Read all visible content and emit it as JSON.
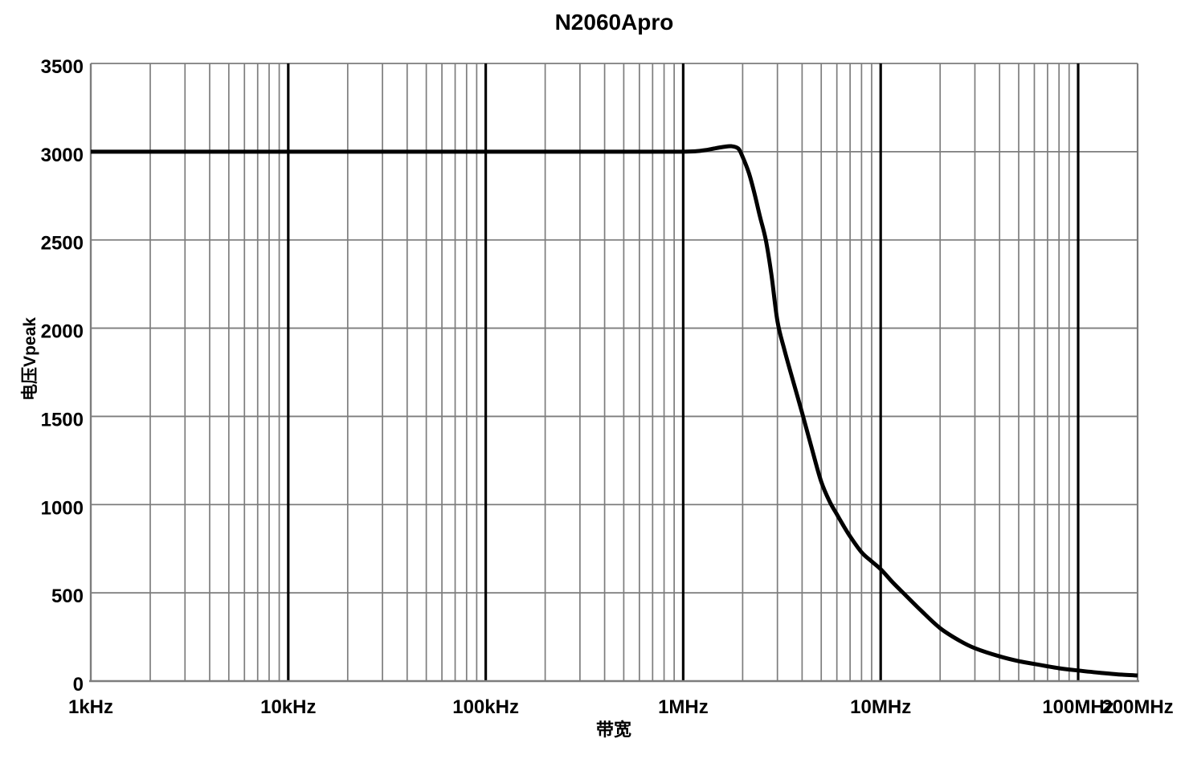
{
  "chart_data": {
    "type": "line",
    "title": "N2060Apro",
    "xlabel": "带宽",
    "ylabel": "电压Vpeak",
    "xscale": "log",
    "xlim_hz": [
      1000,
      200000000
    ],
    "ylim": [
      0,
      3500
    ],
    "y_tick_step": 500,
    "grid": true,
    "legend": false,
    "x_ticks": [
      {
        "hz": 1000,
        "label": "1kHz"
      },
      {
        "hz": 10000,
        "label": "10kHz"
      },
      {
        "hz": 100000,
        "label": "100kHz"
      },
      {
        "hz": 1000000,
        "label": "1MHz"
      },
      {
        "hz": 10000000,
        "label": "10MHz"
      },
      {
        "hz": 100000000,
        "label": "100MHz"
      },
      {
        "hz": 200000000,
        "label": "200MHz"
      }
    ],
    "y_ticks": [
      0,
      500,
      1000,
      1500,
      2000,
      2500,
      3000,
      3500
    ],
    "series": [
      {
        "name": "N2060Apro",
        "points_hz_vpeak": [
          [
            1000,
            3000
          ],
          [
            2000,
            3000
          ],
          [
            5000,
            3000
          ],
          [
            10000,
            3000
          ],
          [
            20000,
            3000
          ],
          [
            50000,
            3000
          ],
          [
            100000,
            3000
          ],
          [
            200000,
            3000
          ],
          [
            500000,
            3000
          ],
          [
            800000,
            3000
          ],
          [
            1000000,
            3000
          ],
          [
            1150000,
            3002
          ],
          [
            1300000,
            3009
          ],
          [
            1450000,
            3019
          ],
          [
            1600000,
            3027
          ],
          [
            1750000,
            3031
          ],
          [
            1900000,
            3018
          ],
          [
            2000000,
            2970
          ],
          [
            2150000,
            2880
          ],
          [
            2300000,
            2760
          ],
          [
            2450000,
            2630
          ],
          [
            2620000,
            2500
          ],
          [
            2800000,
            2300
          ],
          [
            3000000,
            2040
          ],
          [
            3250000,
            1880
          ],
          [
            3500000,
            1750
          ],
          [
            4000000,
            1520
          ],
          [
            4500000,
            1310
          ],
          [
            5000000,
            1130
          ],
          [
            5500000,
            1020
          ],
          [
            6000000,
            945
          ],
          [
            6500000,
            878
          ],
          [
            7000000,
            820
          ],
          [
            8000000,
            730
          ],
          [
            9000000,
            678
          ],
          [
            10000000,
            634
          ],
          [
            11500000,
            560
          ],
          [
            13000000,
            500
          ],
          [
            16000000,
            400
          ],
          [
            20000000,
            300
          ],
          [
            25000000,
            230
          ],
          [
            30000000,
            186
          ],
          [
            40000000,
            140
          ],
          [
            50000000,
            113
          ],
          [
            60000000,
            97
          ],
          [
            80000000,
            73
          ],
          [
            100000000,
            60
          ],
          [
            130000000,
            47
          ],
          [
            160000000,
            38
          ],
          [
            200000000,
            32
          ]
        ]
      }
    ],
    "colors": {
      "curve": "#000000",
      "grid": "#7d7d7d",
      "decade_grid": "#000000",
      "background": "#ffffff",
      "text": "#000000"
    }
  }
}
